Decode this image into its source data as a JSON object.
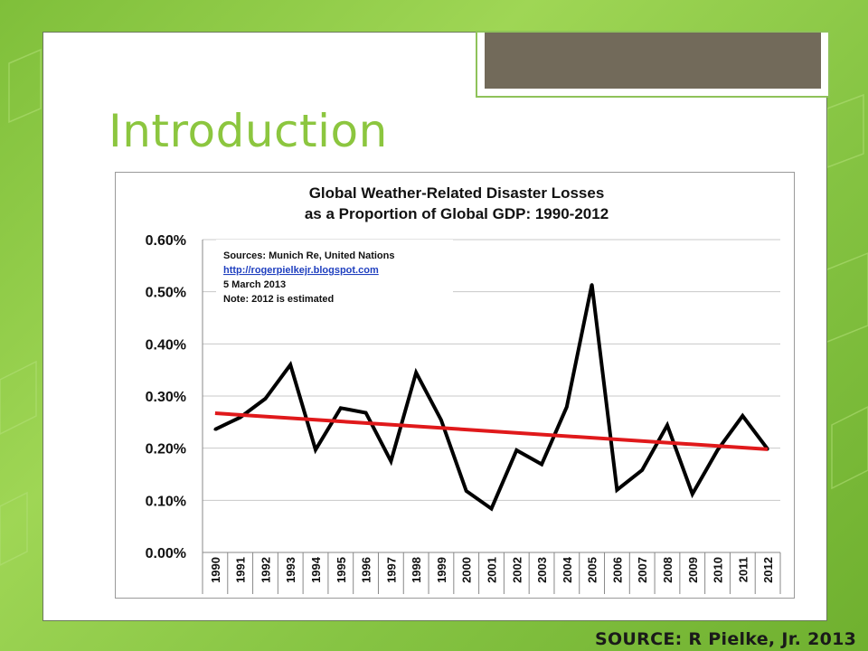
{
  "slide": {
    "title": "Introduction",
    "source": "SOURCE: R Pielke, Jr. 2013"
  },
  "colors": {
    "title_green": "#8cc63f",
    "data_line": "#000000",
    "trend_line": "#e0191b",
    "link_blue": "#1f3fbf"
  },
  "chart_data": {
    "type": "line",
    "title": "Global Weather-Related Disaster Losses",
    "subtitle": "as a Proportion of Global GDP: 1990-2012",
    "annotation": {
      "line1": "Sources: Munich Re, United Nations",
      "link": "http://rogerpielkejr.blogspot.com",
      "line3": "5 March 2013",
      "line4": "Note: 2012 is estimated"
    },
    "x": [
      "1990",
      "1991",
      "1992",
      "1993",
      "1994",
      "1995",
      "1996",
      "1997",
      "1998",
      "1999",
      "2000",
      "2001",
      "2002",
      "2003",
      "2004",
      "2005",
      "2006",
      "2007",
      "2008",
      "2009",
      "2010",
      "2011",
      "2012"
    ],
    "series": [
      {
        "values": [
          0.236,
          0.259,
          0.295,
          0.36,
          0.197,
          0.277,
          0.268,
          0.175,
          0.345,
          0.254,
          0.118,
          0.084,
          0.196,
          0.169,
          0.279,
          0.514,
          0.12,
          0.158,
          0.244,
          0.112,
          0.196,
          0.262,
          0.198
        ]
      }
    ],
    "trend": {
      "start": 0.267,
      "end": 0.198
    },
    "ylim": [
      0,
      0.6
    ],
    "yticks": [
      "0.00%",
      "0.10%",
      "0.20%",
      "0.30%",
      "0.40%",
      "0.50%",
      "0.60%"
    ],
    "grid": true
  }
}
